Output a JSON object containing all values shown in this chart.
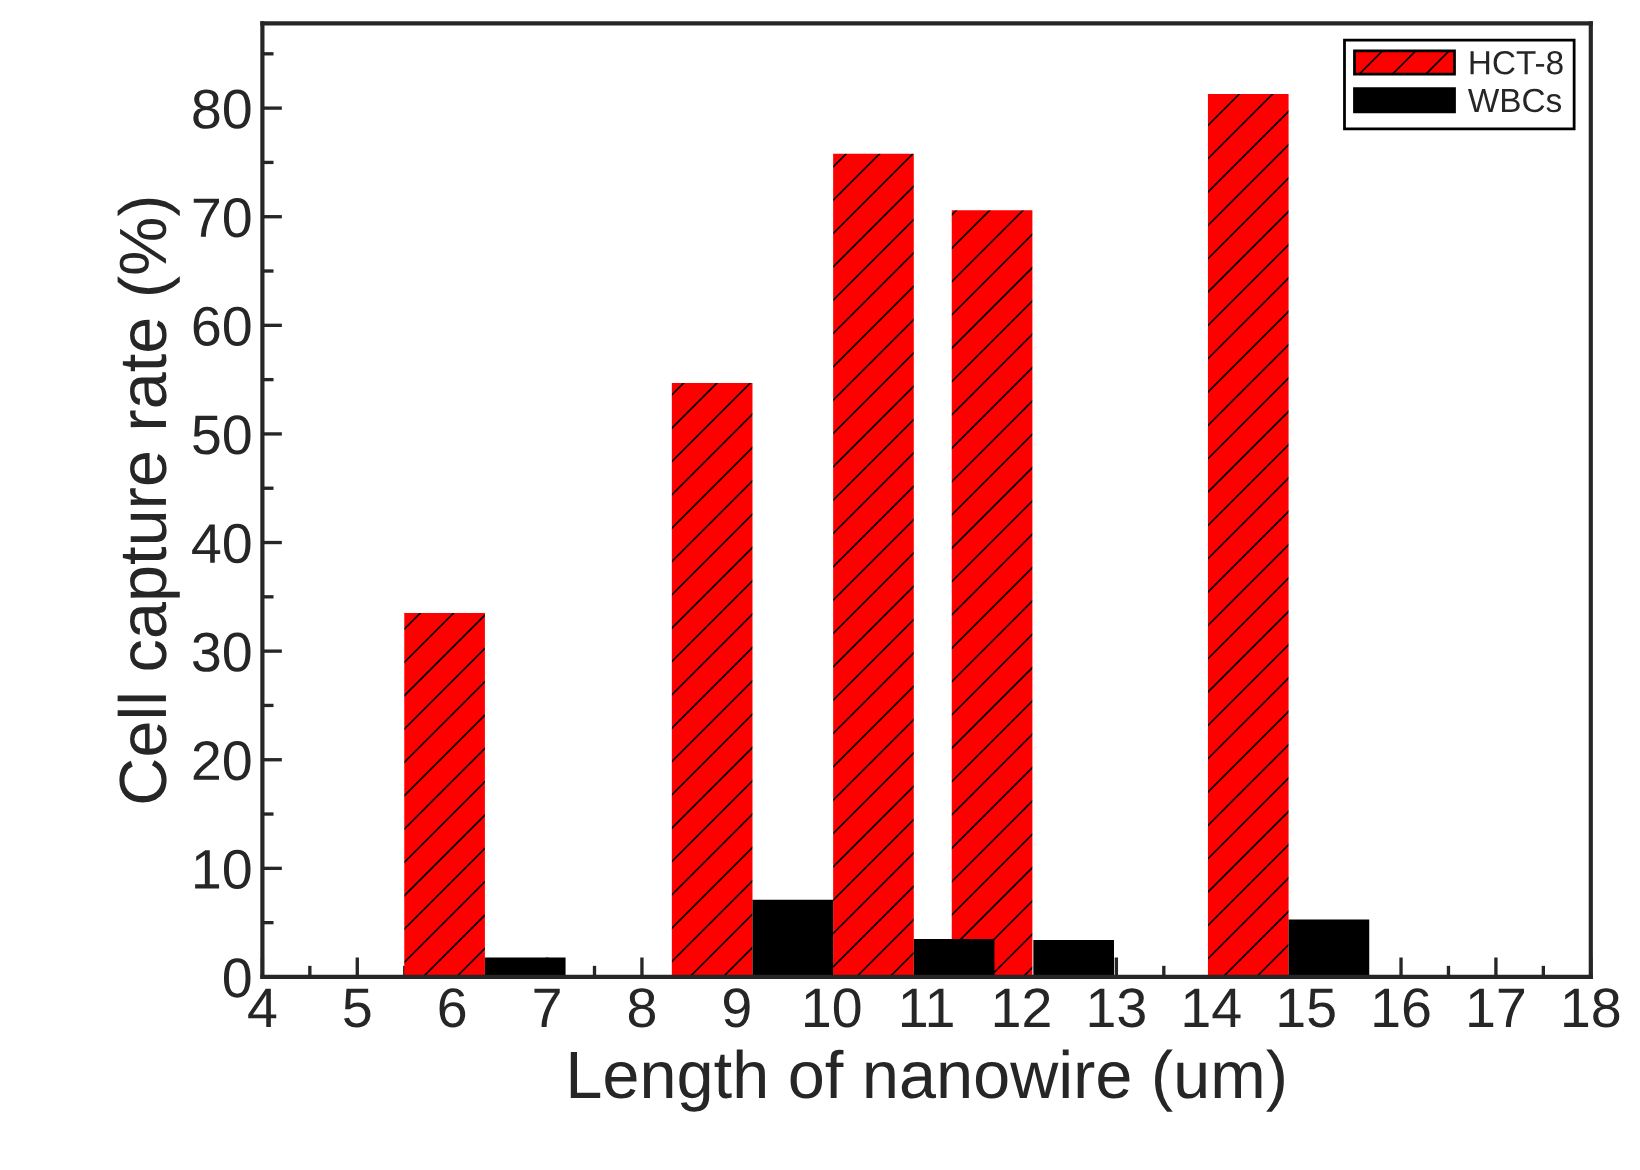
{
  "chart_data": {
    "type": "bar",
    "xlabel": "Length of nanowire (um)",
    "ylabel": "Cell capture rate (%)",
    "series": [
      {
        "name": "HCT-8",
        "color": "#ff0000",
        "x": [
          5.92,
          8.74,
          10.44,
          11.69,
          14.39
        ],
        "values": [
          33.5,
          54.7,
          75.8,
          70.6,
          81.3
        ]
      },
      {
        "name": "WBCs",
        "color": "#000000",
        "x": [
          6.77,
          9.59,
          11.29,
          12.55,
          15.24
        ],
        "values": [
          1.8,
          7.1,
          3.5,
          3.4,
          5.3
        ]
      }
    ],
    "xlim": [
      4,
      18
    ],
    "xticks": [
      4,
      5,
      6,
      7,
      8,
      9,
      10,
      11,
      12,
      13,
      14,
      15,
      16,
      17,
      18
    ],
    "ylim": [
      0,
      87.8
    ],
    "yticks": [
      0,
      10,
      20,
      30,
      40,
      50,
      60,
      70,
      80
    ],
    "grid": false,
    "legend": "top right"
  }
}
